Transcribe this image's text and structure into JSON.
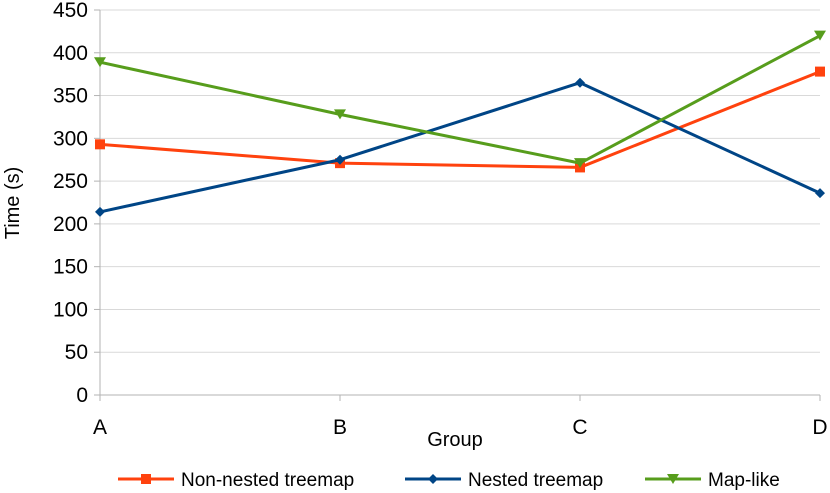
{
  "chart_data": {
    "type": "line",
    "title": "",
    "xlabel": "Group",
    "ylabel": "Time (s)",
    "categories": [
      "A",
      "B",
      "C",
      "D"
    ],
    "ylim": [
      0,
      450
    ],
    "yticks": [
      0,
      50,
      100,
      150,
      200,
      250,
      300,
      350,
      400,
      450
    ],
    "grid": true,
    "legend": "bottom",
    "series": [
      {
        "name": "Non-nested treemap",
        "color": "#ff420e",
        "marker": "square",
        "values": [
          293,
          271,
          266,
          378
        ]
      },
      {
        "name": "Nested treemap",
        "color": "#004586",
        "marker": "diamond",
        "values": [
          214,
          275,
          365,
          236
        ]
      },
      {
        "name": "Map-like",
        "color": "#579d1c",
        "marker": "triangle-down",
        "values": [
          389,
          328,
          271,
          420
        ]
      }
    ]
  }
}
